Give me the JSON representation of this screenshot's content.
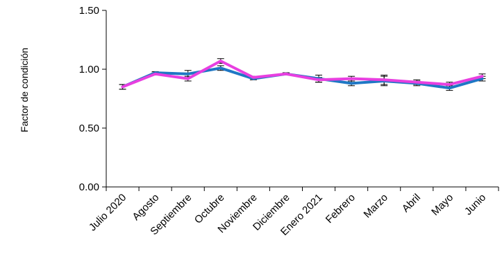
{
  "chart_data": {
    "type": "line",
    "title": "",
    "xlabel": "",
    "ylabel": "Factor de condición",
    "ylim": [
      0,
      1.5
    ],
    "yticks": [
      "0.00",
      "0.50",
      "1.00",
      "1.50"
    ],
    "categories": [
      "Julio 2020",
      "Agosto",
      "Septiembre",
      "Octubre",
      "Noviembre",
      "Diciembre",
      "Enero 2021",
      "Febrero",
      "Marzo",
      "Abril",
      "Mayo",
      "Junio"
    ],
    "grid": false,
    "legend": "none",
    "error_bars": true,
    "series": [
      {
        "color": "#1F77C4",
        "values": [
          0.85,
          0.97,
          0.96,
          1.01,
          0.92,
          0.96,
          0.92,
          0.88,
          0.9,
          0.88,
          0.84,
          0.92
        ],
        "error": [
          0.02,
          0.01,
          0.03,
          0.02,
          0.01,
          0.01,
          0.03,
          0.02,
          0.04,
          0.02,
          0.02,
          0.02
        ]
      },
      {
        "color": "#E83FE0",
        "values": [
          0.85,
          0.96,
          0.92,
          1.07,
          0.93,
          0.96,
          0.91,
          0.92,
          0.91,
          0.89,
          0.87,
          0.94
        ],
        "error": [
          0.02,
          0.01,
          0.02,
          0.02,
          0.01,
          0.01,
          0.02,
          0.02,
          0.04,
          0.02,
          0.02,
          0.02
        ]
      }
    ]
  }
}
